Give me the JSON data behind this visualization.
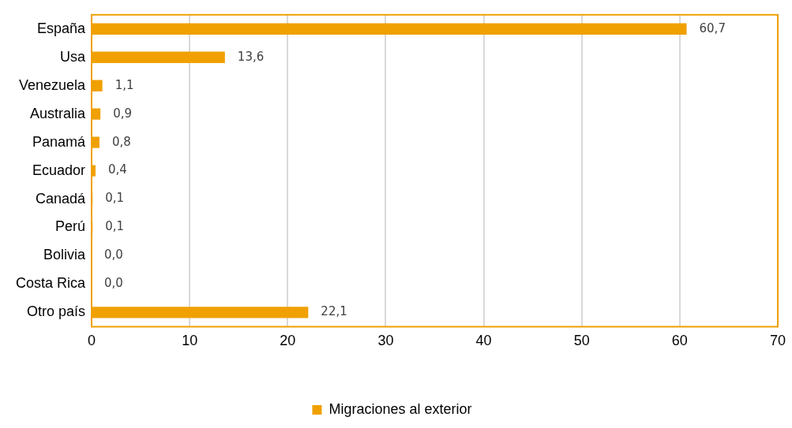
{
  "chart_data": {
    "type": "bar",
    "orientation": "horizontal",
    "categories": [
      "España",
      "Usa",
      "Venezuela",
      "Australia",
      "Panamá",
      "Ecuador",
      "Canadá",
      "Perú",
      "Bolivia",
      "Costa Rica",
      "Otro país"
    ],
    "series": [
      {
        "name": "Migraciones al exterior",
        "color": "#f0a000",
        "values": [
          60.7,
          13.6,
          1.1,
          0.9,
          0.8,
          0.4,
          0.1,
          0.1,
          0.0,
          0.0,
          22.1
        ],
        "value_labels": [
          "60,7",
          "13,6",
          "1,1",
          "0,9",
          "0,8",
          "0,4",
          "0,1",
          "0,1",
          "0,0",
          "0,0",
          "22,1"
        ]
      }
    ],
    "xlim": [
      0,
      70
    ],
    "xticks": [
      0,
      10,
      20,
      30,
      40,
      50,
      60,
      70
    ],
    "grid": "x",
    "legend": "bottom"
  }
}
